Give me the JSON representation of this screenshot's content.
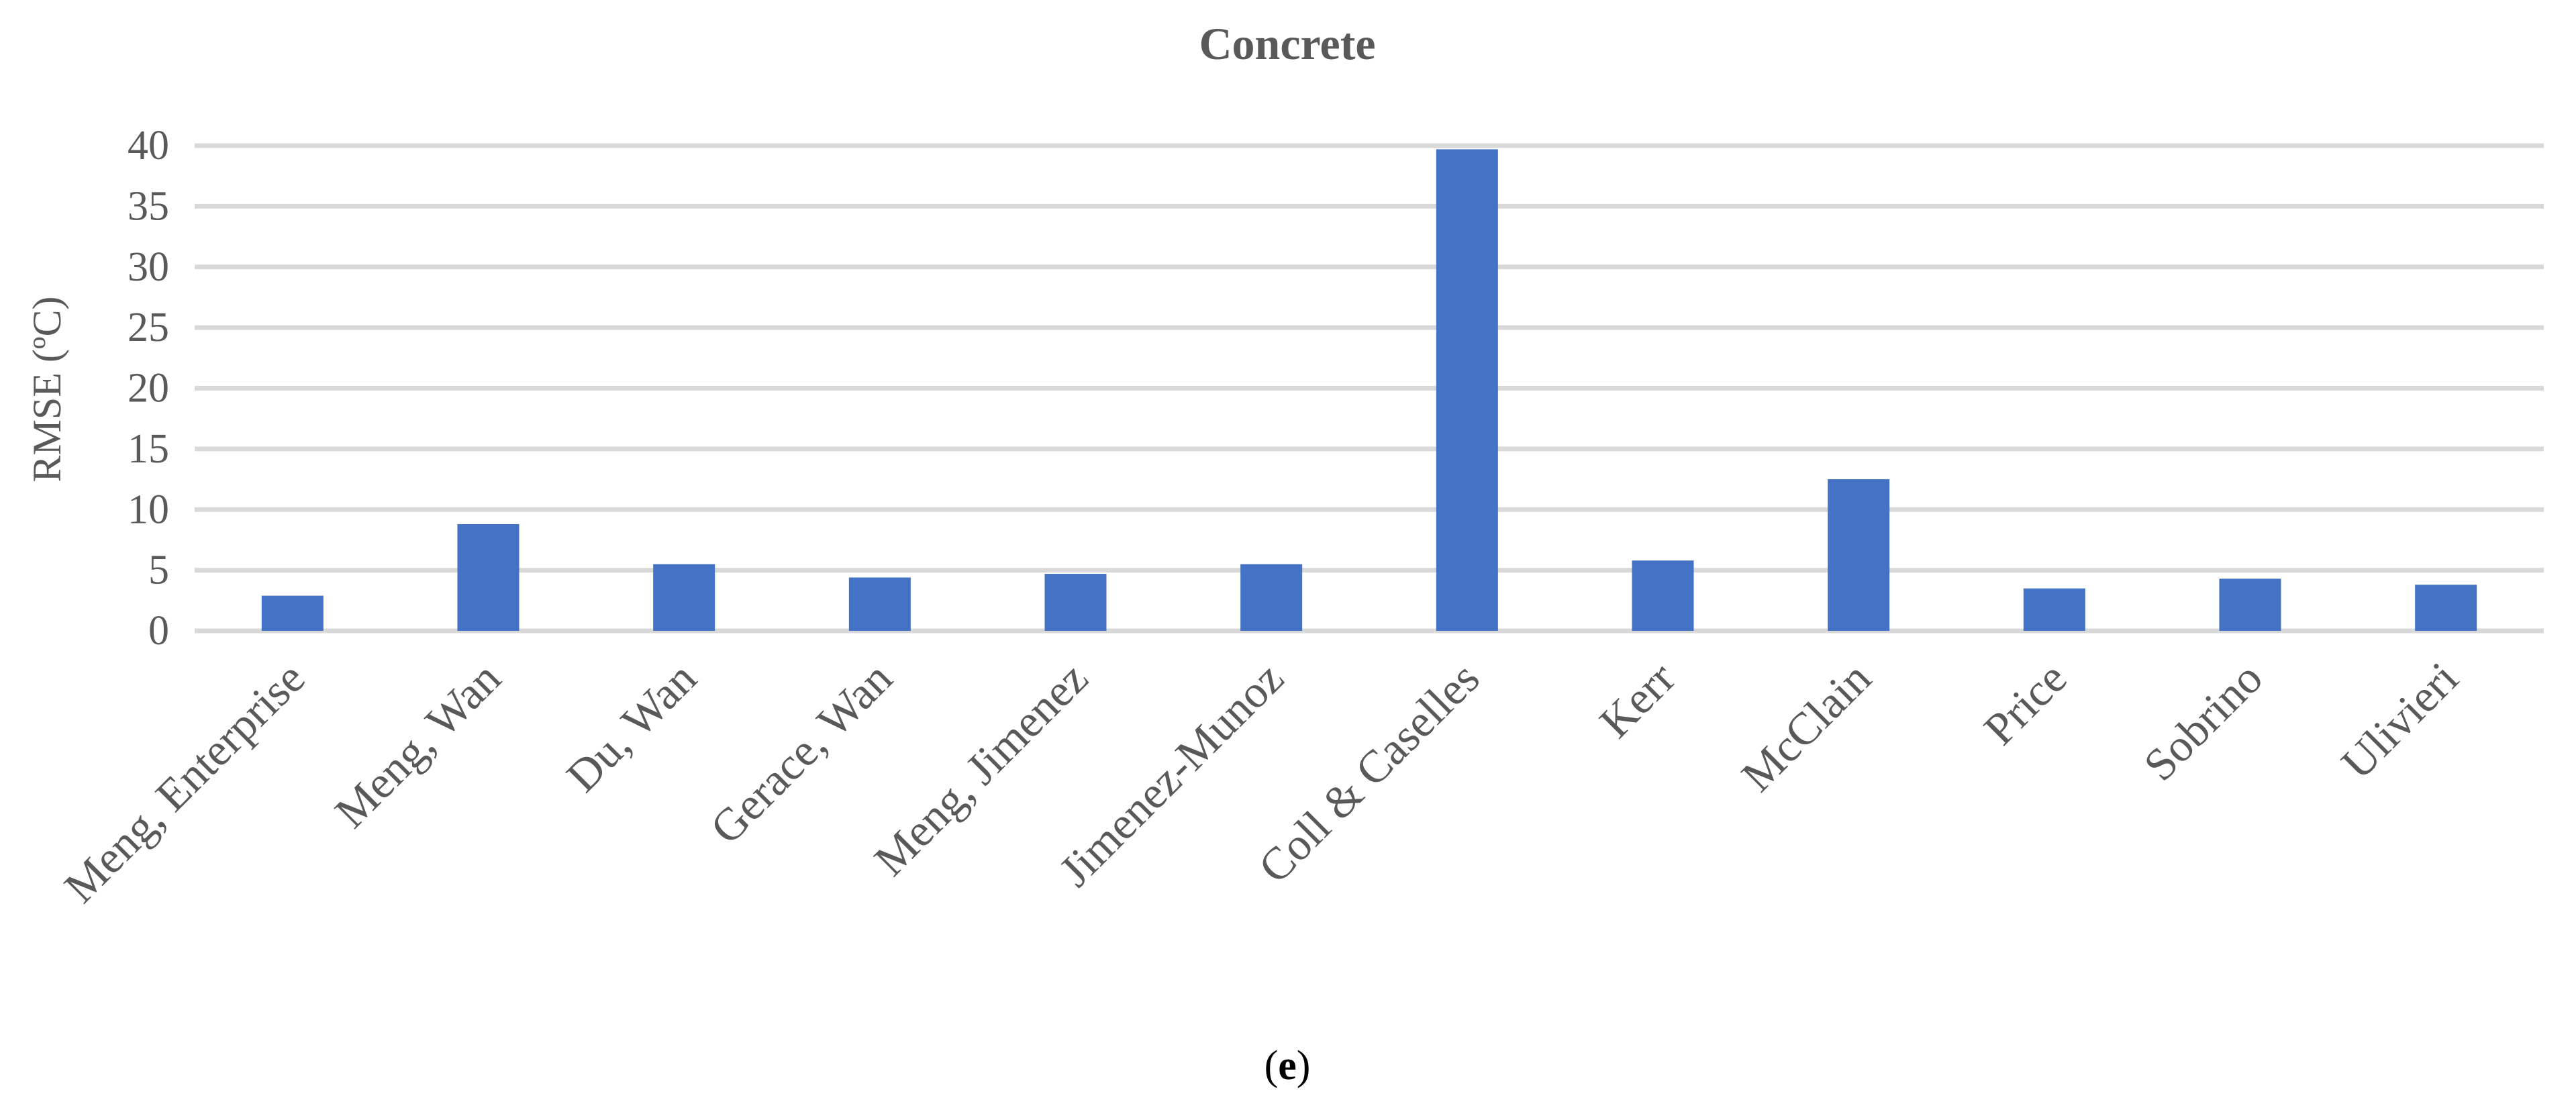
{
  "chart_data": {
    "type": "bar",
    "title": "Concrete",
    "xlabel": "",
    "ylabel": "RMSE (ºC)",
    "ylim": [
      0,
      40
    ],
    "yticks": [
      0,
      5,
      10,
      15,
      20,
      25,
      30,
      35,
      40
    ],
    "grid": true,
    "legend": "none",
    "categories": [
      "Meng, Enterprise",
      "Meng, Wan",
      "Du, Wan",
      "Gerace, Wan",
      "Meng, Jimenez",
      "Jimenez-Munoz",
      "Coll & Caselles",
      "Kerr",
      "McClain",
      "Price",
      "Sobrino",
      "Ulivieri"
    ],
    "values": [
      2.9,
      8.8,
      5.5,
      4.4,
      4.7,
      5.5,
      39.7,
      5.8,
      12.5,
      3.5,
      4.3,
      3.8
    ],
    "bar_color": "#4472c4"
  },
  "caption": {
    "open": "(",
    "letter": "e",
    "close": ")"
  }
}
